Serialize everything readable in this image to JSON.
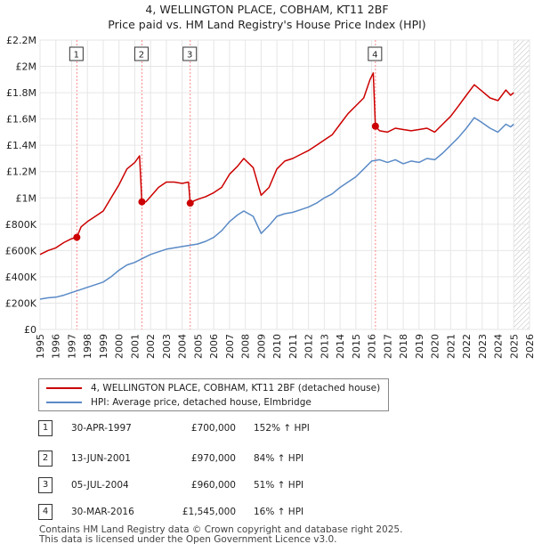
{
  "title_line1": "4, WELLINGTON PLACE, COBHAM, KT11 2BF",
  "title_line2": "Price paid vs. HM Land Registry's House Price Index (HPI)",
  "colors": {
    "property": "#cc0000",
    "hpi": "#5a8ac6",
    "marker_line": "#ff8888"
  },
  "chart_data": {
    "type": "line",
    "ylim": [
      0,
      2200000
    ],
    "xlim": [
      1995,
      2026
    ],
    "y_ticks": [
      "£0",
      "£200K",
      "£400K",
      "£600K",
      "£800K",
      "£1M",
      "£1.2M",
      "£1.4M",
      "£1.6M",
      "£1.8M",
      "£2M",
      "£2.2M"
    ],
    "y_tick_values": [
      0,
      200000,
      400000,
      600000,
      800000,
      1000000,
      1200000,
      1400000,
      1600000,
      1800000,
      2000000,
      2200000
    ],
    "x_ticks": [
      "1995",
      "1996",
      "1997",
      "1998",
      "1999",
      "2000",
      "2001",
      "2002",
      "2003",
      "2004",
      "2005",
      "2006",
      "2007",
      "2008",
      "2009",
      "2010",
      "2011",
      "2012",
      "2013",
      "2014",
      "2015",
      "2016",
      "2017",
      "2018",
      "2019",
      "2020",
      "2021",
      "2022",
      "2023",
      "2024",
      "2025",
      "2026"
    ],
    "forecast_from": 2025.0,
    "series": [
      {
        "name": "4, WELLINGTON PLACE, COBHAM, KT11 2BF (detached house)",
        "points": [
          [
            1995.0,
            570000
          ],
          [
            1995.5,
            600000
          ],
          [
            1996.0,
            620000
          ],
          [
            1996.5,
            660000
          ],
          [
            1997.0,
            690000
          ],
          [
            1997.33,
            700000
          ],
          [
            1997.6,
            780000
          ],
          [
            1998.0,
            820000
          ],
          [
            1998.5,
            860000
          ],
          [
            1999.0,
            900000
          ],
          [
            1999.5,
            1000000
          ],
          [
            2000.0,
            1100000
          ],
          [
            2000.5,
            1220000
          ],
          [
            2001.0,
            1270000
          ],
          [
            2001.3,
            1320000
          ],
          [
            2001.45,
            970000
          ],
          [
            2001.7,
            970000
          ],
          [
            2002.0,
            1010000
          ],
          [
            2002.5,
            1080000
          ],
          [
            2003.0,
            1120000
          ],
          [
            2003.5,
            1120000
          ],
          [
            2004.0,
            1110000
          ],
          [
            2004.4,
            1120000
          ],
          [
            2004.51,
            960000
          ],
          [
            2004.8,
            980000
          ],
          [
            2005.0,
            990000
          ],
          [
            2005.5,
            1010000
          ],
          [
            2006.0,
            1040000
          ],
          [
            2006.5,
            1080000
          ],
          [
            2007.0,
            1180000
          ],
          [
            2007.5,
            1240000
          ],
          [
            2007.9,
            1300000
          ],
          [
            2008.5,
            1230000
          ],
          [
            2009.0,
            1020000
          ],
          [
            2009.5,
            1080000
          ],
          [
            2010.0,
            1220000
          ],
          [
            2010.5,
            1280000
          ],
          [
            2011.0,
            1300000
          ],
          [
            2011.5,
            1330000
          ],
          [
            2012.0,
            1360000
          ],
          [
            2012.5,
            1400000
          ],
          [
            2013.0,
            1440000
          ],
          [
            2013.5,
            1480000
          ],
          [
            2014.0,
            1560000
          ],
          [
            2014.5,
            1640000
          ],
          [
            2015.0,
            1700000
          ],
          [
            2015.5,
            1760000
          ],
          [
            2015.9,
            1900000
          ],
          [
            2016.1,
            1950000
          ],
          [
            2016.24,
            1545000
          ],
          [
            2016.5,
            1510000
          ],
          [
            2017.0,
            1500000
          ],
          [
            2017.5,
            1530000
          ],
          [
            2018.0,
            1520000
          ],
          [
            2018.5,
            1510000
          ],
          [
            2019.0,
            1520000
          ],
          [
            2019.5,
            1530000
          ],
          [
            2020.0,
            1500000
          ],
          [
            2020.5,
            1560000
          ],
          [
            2021.0,
            1620000
          ],
          [
            2021.5,
            1700000
          ],
          [
            2022.0,
            1780000
          ],
          [
            2022.5,
            1860000
          ],
          [
            2022.9,
            1820000
          ],
          [
            2023.5,
            1760000
          ],
          [
            2024.0,
            1740000
          ],
          [
            2024.5,
            1820000
          ],
          [
            2024.8,
            1780000
          ],
          [
            2025.0,
            1800000
          ]
        ]
      },
      {
        "name": "HPI: Average price, detached house, Elmbridge",
        "points": [
          [
            1995.0,
            230000
          ],
          [
            1995.5,
            240000
          ],
          [
            1996.0,
            245000
          ],
          [
            1996.5,
            260000
          ],
          [
            1997.0,
            280000
          ],
          [
            1997.5,
            300000
          ],
          [
            1998.0,
            320000
          ],
          [
            1998.5,
            340000
          ],
          [
            1999.0,
            360000
          ],
          [
            1999.5,
            400000
          ],
          [
            2000.0,
            450000
          ],
          [
            2000.5,
            490000
          ],
          [
            2001.0,
            510000
          ],
          [
            2001.5,
            540000
          ],
          [
            2002.0,
            570000
          ],
          [
            2002.5,
            590000
          ],
          [
            2003.0,
            610000
          ],
          [
            2003.5,
            620000
          ],
          [
            2004.0,
            630000
          ],
          [
            2004.5,
            640000
          ],
          [
            2005.0,
            650000
          ],
          [
            2005.5,
            670000
          ],
          [
            2006.0,
            700000
          ],
          [
            2006.5,
            750000
          ],
          [
            2007.0,
            820000
          ],
          [
            2007.5,
            870000
          ],
          [
            2007.9,
            900000
          ],
          [
            2008.5,
            860000
          ],
          [
            2009.0,
            730000
          ],
          [
            2009.5,
            790000
          ],
          [
            2010.0,
            860000
          ],
          [
            2010.5,
            880000
          ],
          [
            2011.0,
            890000
          ],
          [
            2011.5,
            910000
          ],
          [
            2012.0,
            930000
          ],
          [
            2012.5,
            960000
          ],
          [
            2013.0,
            1000000
          ],
          [
            2013.5,
            1030000
          ],
          [
            2014.0,
            1080000
          ],
          [
            2014.5,
            1120000
          ],
          [
            2015.0,
            1160000
          ],
          [
            2015.5,
            1220000
          ],
          [
            2016.0,
            1280000
          ],
          [
            2016.5,
            1290000
          ],
          [
            2017.0,
            1270000
          ],
          [
            2017.5,
            1290000
          ],
          [
            2018.0,
            1260000
          ],
          [
            2018.5,
            1280000
          ],
          [
            2019.0,
            1270000
          ],
          [
            2019.5,
            1300000
          ],
          [
            2020.0,
            1290000
          ],
          [
            2020.5,
            1340000
          ],
          [
            2021.0,
            1400000
          ],
          [
            2021.5,
            1460000
          ],
          [
            2022.0,
            1530000
          ],
          [
            2022.5,
            1610000
          ],
          [
            2022.9,
            1580000
          ],
          [
            2023.5,
            1530000
          ],
          [
            2024.0,
            1500000
          ],
          [
            2024.5,
            1560000
          ],
          [
            2024.8,
            1540000
          ],
          [
            2025.0,
            1560000
          ]
        ]
      }
    ],
    "transactions": [
      {
        "label": "1",
        "date": "30-APR-1997",
        "price": "£700,000",
        "hpi": "152% ↑ HPI",
        "x": 1997.33,
        "y": 700000
      },
      {
        "label": "2",
        "date": "13-JUN-2001",
        "price": "£970,000",
        "hpi": "84% ↑ HPI",
        "x": 2001.45,
        "y": 970000
      },
      {
        "label": "3",
        "date": "05-JUL-2004",
        "price": "£960,000",
        "hpi": "51% ↑ HPI",
        "x": 2004.51,
        "y": 960000
      },
      {
        "label": "4",
        "date": "30-MAR-2016",
        "price": "£1,545,000",
        "hpi": "16% ↑ HPI",
        "x": 2016.24,
        "y": 1545000
      }
    ]
  },
  "legend": {
    "property": "4, WELLINGTON PLACE, COBHAM, KT11 2BF (detached house)",
    "hpi": "HPI: Average price, detached house, Elmbridge"
  },
  "footer": {
    "line1": "Contains HM Land Registry data © Crown copyright and database right 2025.",
    "line2": "This data is licensed under the Open Government Licence v3.0."
  }
}
